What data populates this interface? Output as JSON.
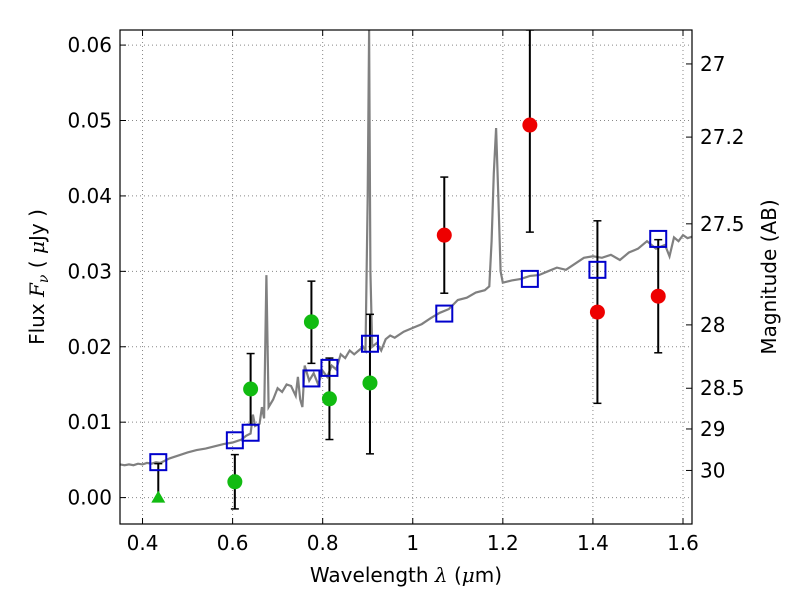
{
  "chart_data": {
    "type": "scatter",
    "xlabel_parts": [
      "Wavelength ",
      "λ",
      " (",
      "μ",
      "m)"
    ],
    "ylabel_parts": [
      "Flux ",
      "F",
      "ν",
      " ( ",
      "μ",
      "Jy )"
    ],
    "y2label": "Magnitude (AB)",
    "xlim": [
      0.35,
      1.62
    ],
    "ylim": [
      -0.0035,
      0.062
    ],
    "xticks": [
      0.4,
      0.6,
      0.8,
      1.0,
      1.2,
      1.4,
      1.6
    ],
    "xtick_labels": [
      "0.4",
      "0.6",
      "0.8",
      "1",
      "1.2",
      "1.4",
      "1.6"
    ],
    "yticks": [
      0.0,
      0.01,
      0.02,
      0.03,
      0.04,
      0.05,
      0.06
    ],
    "ytick_labels": [
      "0.00",
      "0.01",
      "0.02",
      "0.03",
      "0.04",
      "0.05",
      "0.06"
    ],
    "y2ticks": [
      {
        "label": "27",
        "flux": 0.0575
      },
      {
        "label": "27.2",
        "flux": 0.0478
      },
      {
        "label": "27.5",
        "flux": 0.0363
      },
      {
        "label": "28",
        "flux": 0.0229
      },
      {
        "label": "28.5",
        "flux": 0.0145
      },
      {
        "label": "29",
        "flux": 0.0091
      },
      {
        "label": "30",
        "flux": 0.0036
      }
    ],
    "grid": true,
    "colors": {
      "model": "#808080",
      "model_points": "#0000cc",
      "green": "#11bb11",
      "red": "#ee0000",
      "errorbar": "#000000"
    },
    "model_spectrum": [
      [
        0.35,
        0.0044
      ],
      [
        0.36,
        0.0043
      ],
      [
        0.37,
        0.0044
      ],
      [
        0.38,
        0.0043
      ],
      [
        0.39,
        0.0045
      ],
      [
        0.4,
        0.0044
      ],
      [
        0.41,
        0.0046
      ],
      [
        0.42,
        0.0045
      ],
      [
        0.43,
        0.0047
      ],
      [
        0.44,
        0.0046
      ],
      [
        0.46,
        0.0052
      ],
      [
        0.48,
        0.0056
      ],
      [
        0.5,
        0.006
      ],
      [
        0.52,
        0.0063
      ],
      [
        0.54,
        0.0065
      ],
      [
        0.56,
        0.0068
      ],
      [
        0.58,
        0.0071
      ],
      [
        0.6,
        0.0073
      ],
      [
        0.62,
        0.0077
      ],
      [
        0.63,
        0.0082
      ],
      [
        0.64,
        0.0085
      ],
      [
        0.645,
        0.011
      ],
      [
        0.65,
        0.0095
      ],
      [
        0.66,
        0.0098
      ],
      [
        0.665,
        0.012
      ],
      [
        0.67,
        0.0105
      ],
      [
        0.675,
        0.0295
      ],
      [
        0.68,
        0.012
      ],
      [
        0.69,
        0.013
      ],
      [
        0.7,
        0.0145
      ],
      [
        0.71,
        0.014
      ],
      [
        0.72,
        0.015
      ],
      [
        0.73,
        0.0148
      ],
      [
        0.74,
        0.0135
      ],
      [
        0.745,
        0.016
      ],
      [
        0.75,
        0.013
      ],
      [
        0.755,
        0.012
      ],
      [
        0.76,
        0.0175
      ],
      [
        0.77,
        0.0155
      ],
      [
        0.78,
        0.0165
      ],
      [
        0.79,
        0.015
      ],
      [
        0.8,
        0.0168
      ],
      [
        0.81,
        0.016
      ],
      [
        0.82,
        0.0175
      ],
      [
        0.83,
        0.017
      ],
      [
        0.84,
        0.019
      ],
      [
        0.85,
        0.0185
      ],
      [
        0.86,
        0.0195
      ],
      [
        0.87,
        0.019
      ],
      [
        0.88,
        0.0195
      ],
      [
        0.89,
        0.02
      ],
      [
        0.895,
        0.0195
      ],
      [
        0.9,
        0.04
      ],
      [
        0.903,
        0.062
      ],
      [
        0.906,
        0.03
      ],
      [
        0.91,
        0.02
      ],
      [
        0.92,
        0.0205
      ],
      [
        0.93,
        0.0195
      ],
      [
        0.94,
        0.021
      ],
      [
        0.95,
        0.0215
      ],
      [
        0.96,
        0.0212
      ],
      [
        0.98,
        0.022
      ],
      [
        1.0,
        0.0225
      ],
      [
        1.02,
        0.023
      ],
      [
        1.04,
        0.0238
      ],
      [
        1.06,
        0.0245
      ],
      [
        1.08,
        0.025
      ],
      [
        1.1,
        0.0262
      ],
      [
        1.12,
        0.0265
      ],
      [
        1.14,
        0.0272
      ],
      [
        1.16,
        0.0275
      ],
      [
        1.17,
        0.028
      ],
      [
        1.175,
        0.034
      ],
      [
        1.18,
        0.043
      ],
      [
        1.185,
        0.049
      ],
      [
        1.19,
        0.04
      ],
      [
        1.195,
        0.03
      ],
      [
        1.2,
        0.0285
      ],
      [
        1.22,
        0.0288
      ],
      [
        1.24,
        0.029
      ],
      [
        1.26,
        0.0294
      ],
      [
        1.28,
        0.0295
      ],
      [
        1.3,
        0.03
      ],
      [
        1.32,
        0.0305
      ],
      [
        1.34,
        0.0302
      ],
      [
        1.36,
        0.031
      ],
      [
        1.38,
        0.0318
      ],
      [
        1.4,
        0.032
      ],
      [
        1.42,
        0.0318
      ],
      [
        1.44,
        0.0322
      ],
      [
        1.46,
        0.0315
      ],
      [
        1.48,
        0.0325
      ],
      [
        1.5,
        0.033
      ],
      [
        1.52,
        0.034
      ],
      [
        1.54,
        0.033
      ],
      [
        1.56,
        0.0335
      ],
      [
        1.57,
        0.032
      ],
      [
        1.58,
        0.0345
      ],
      [
        1.59,
        0.034
      ],
      [
        1.6,
        0.0348
      ],
      [
        1.61,
        0.0344
      ],
      [
        1.62,
        0.0346
      ]
    ],
    "model_points": [
      {
        "x": 0.435,
        "y": 0.0047
      },
      {
        "x": 0.605,
        "y": 0.0076
      },
      {
        "x": 0.64,
        "y": 0.0086
      },
      {
        "x": 0.775,
        "y": 0.0158
      },
      {
        "x": 0.815,
        "y": 0.0172
      },
      {
        "x": 0.905,
        "y": 0.0204
      },
      {
        "x": 1.07,
        "y": 0.0244
      },
      {
        "x": 1.26,
        "y": 0.029
      },
      {
        "x": 1.41,
        "y": 0.0302
      },
      {
        "x": 1.545,
        "y": 0.0343
      }
    ],
    "green_points": [
      {
        "x": 0.605,
        "y": 0.0021,
        "lo": -0.0015,
        "hi": 0.0057
      },
      {
        "x": 0.64,
        "y": 0.0144,
        "lo": 0.0097,
        "hi": 0.0191
      },
      {
        "x": 0.775,
        "y": 0.0233,
        "lo": 0.0178,
        "hi": 0.0287
      },
      {
        "x": 0.815,
        "y": 0.0131,
        "lo": 0.0077,
        "hi": 0.0185
      },
      {
        "x": 0.905,
        "y": 0.0152,
        "lo": 0.0058,
        "hi": 0.0243
      }
    ],
    "green_upper_limit": {
      "x": 0.435,
      "y": 0.0,
      "hi": 0.0045
    },
    "red_points": [
      {
        "x": 1.07,
        "y": 0.0348,
        "lo": 0.0271,
        "hi": 0.0425
      },
      {
        "x": 1.26,
        "y": 0.0494,
        "lo": 0.0352,
        "hi": 0.062
      },
      {
        "x": 1.41,
        "y": 0.0246,
        "lo": 0.0125,
        "hi": 0.0367
      },
      {
        "x": 1.545,
        "y": 0.0267,
        "lo": 0.0192,
        "hi": 0.0342
      }
    ]
  }
}
